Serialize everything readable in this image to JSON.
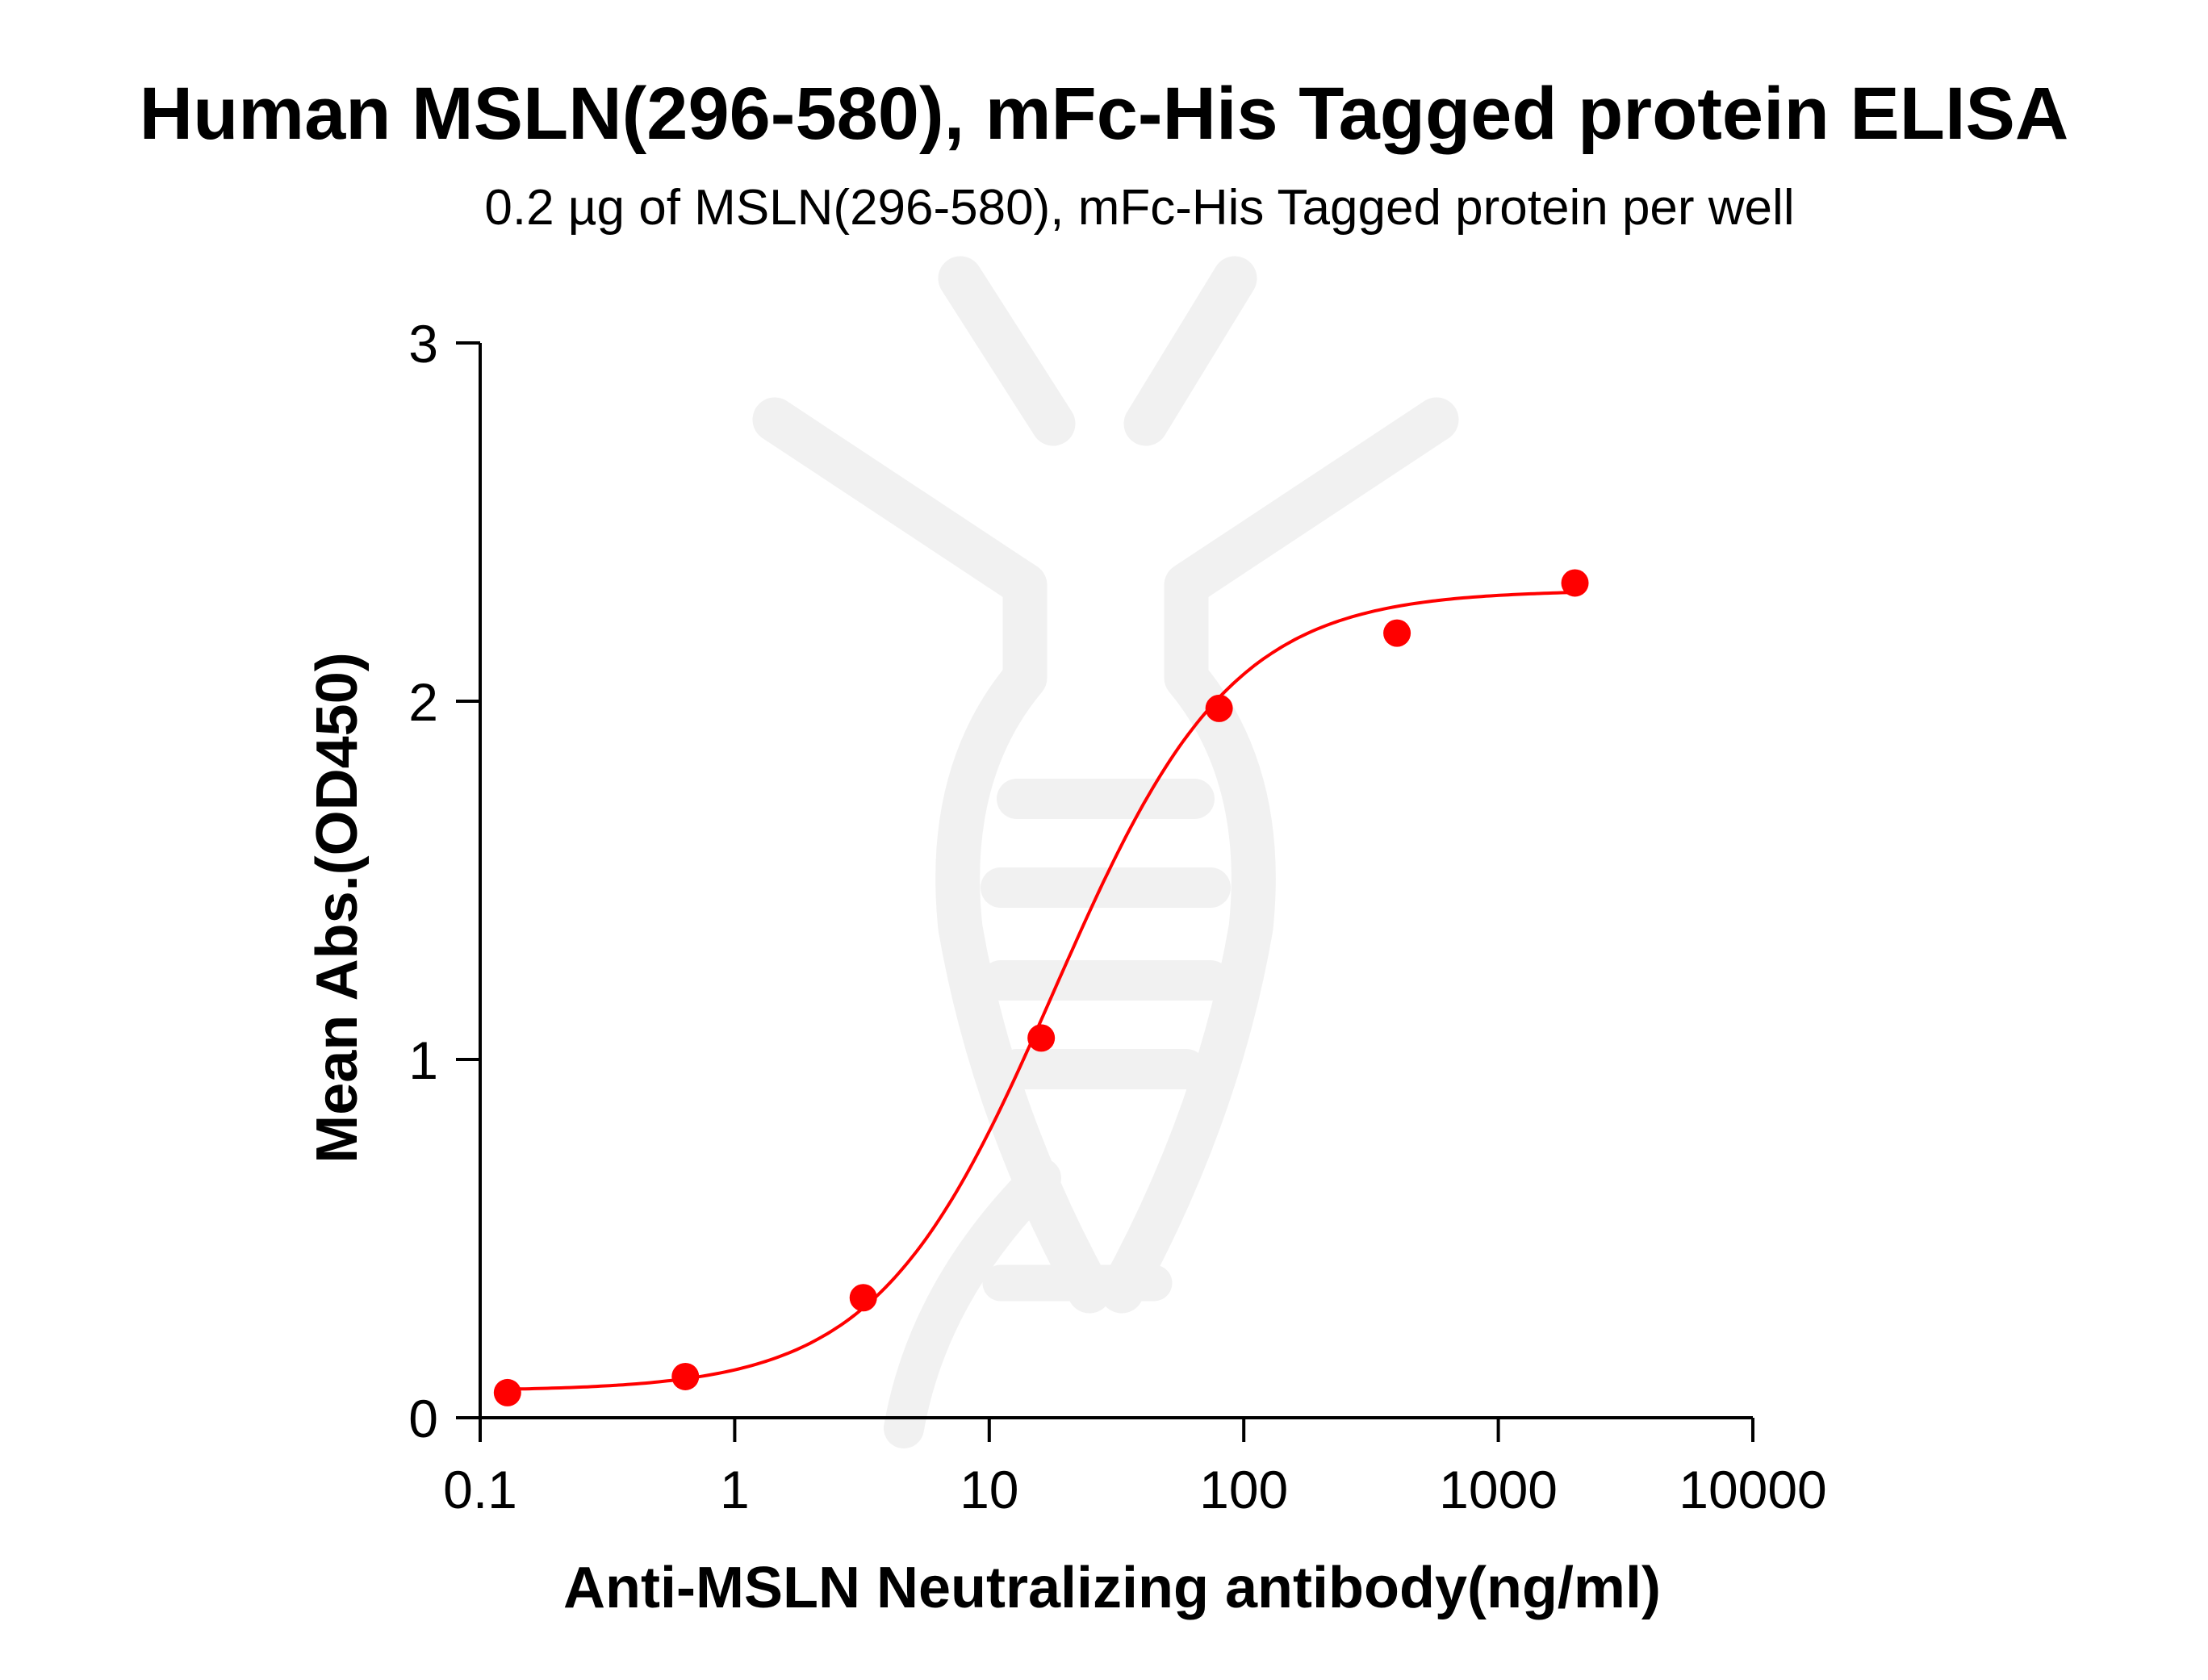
{
  "chart_data": {
    "type": "scatter",
    "title": "Human MSLN(296-580), mFc-His Tagged protein ELISA",
    "subtitle": "0.2 µg of MSLN(296-580), mFc-His Tagged protein per well",
    "xlabel": "Anti-MSLN Neutralizing antibody(ng/ml)",
    "ylabel": "Mean Abs.(OD450)",
    "x_scale": "log",
    "xlim": [
      0.1,
      10000
    ],
    "ylim": [
      0,
      3
    ],
    "x_ticks": [
      "0.1",
      "1",
      "10",
      "100",
      "1000",
      "10000"
    ],
    "y_ticks": [
      "0",
      "1",
      "2",
      "3"
    ],
    "grid": false,
    "legend": "none",
    "series_color": "#ff0000",
    "points": [
      {
        "x": 0.128,
        "y": 0.07
      },
      {
        "x": 0.64,
        "y": 0.115
      },
      {
        "x": 3.2,
        "y": 0.335
      },
      {
        "x": 16,
        "y": 1.06
      },
      {
        "x": 80,
        "y": 1.98
      },
      {
        "x": 400,
        "y": 2.19
      },
      {
        "x": 2000,
        "y": 2.33
      }
    ],
    "fit_curve": {
      "model": "4PL",
      "bottom": 0.075,
      "top": 2.31,
      "ec50": 18,
      "hill": 1.25,
      "x_range": [
        0.128,
        2000
      ]
    }
  }
}
